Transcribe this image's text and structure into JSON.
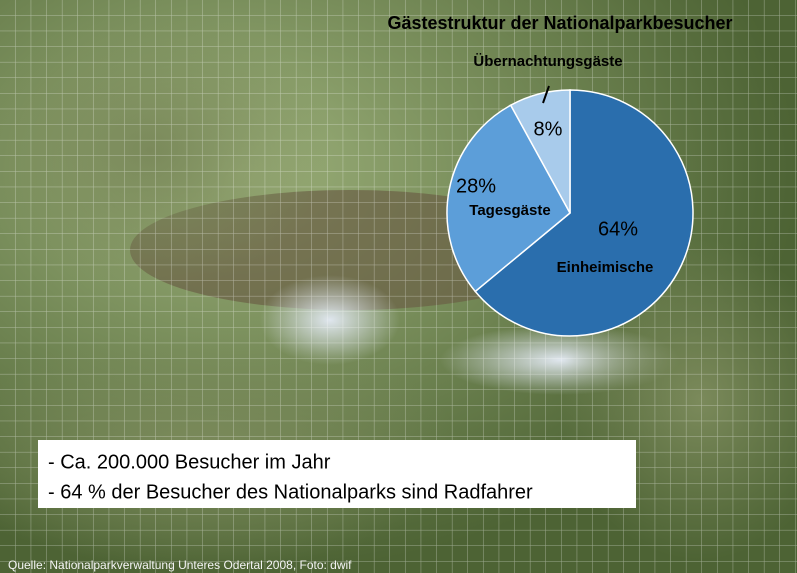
{
  "chart_data": {
    "type": "pie",
    "title": "Gästestruktur der Nationalparkbesucher",
    "categories": [
      "Einheimische",
      "Tagesgäste",
      "Übernachtungsgäste"
    ],
    "values": [
      64,
      28,
      8
    ],
    "value_labels": [
      "64%",
      "28%",
      "8%"
    ],
    "colors": [
      "#2a6ead",
      "#5c9ed9",
      "#a8cbeb"
    ],
    "notes": [
      "- Ca. 200.000 Besucher im Jahr",
      "- 64 % der Besucher des Nationalparks sind Radfahrer"
    ],
    "source": "Quelle: Nationalparkverwaltung Unteres Odertal 2008, Foto: dwif"
  }
}
